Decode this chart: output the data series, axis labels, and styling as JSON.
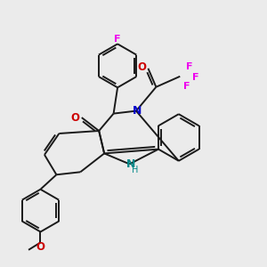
{
  "background_color": "#ebebeb",
  "line_color": "#1a1a1a",
  "N_color": "#0000cc",
  "O_color": "#cc0000",
  "F_color": "#ee00ee",
  "NH_color": "#008888",
  "figsize": [
    3.0,
    3.0
  ],
  "dpi": 100,
  "lw": 1.4,
  "xlim": [
    0,
    10
  ],
  "ylim": [
    0,
    10
  ]
}
